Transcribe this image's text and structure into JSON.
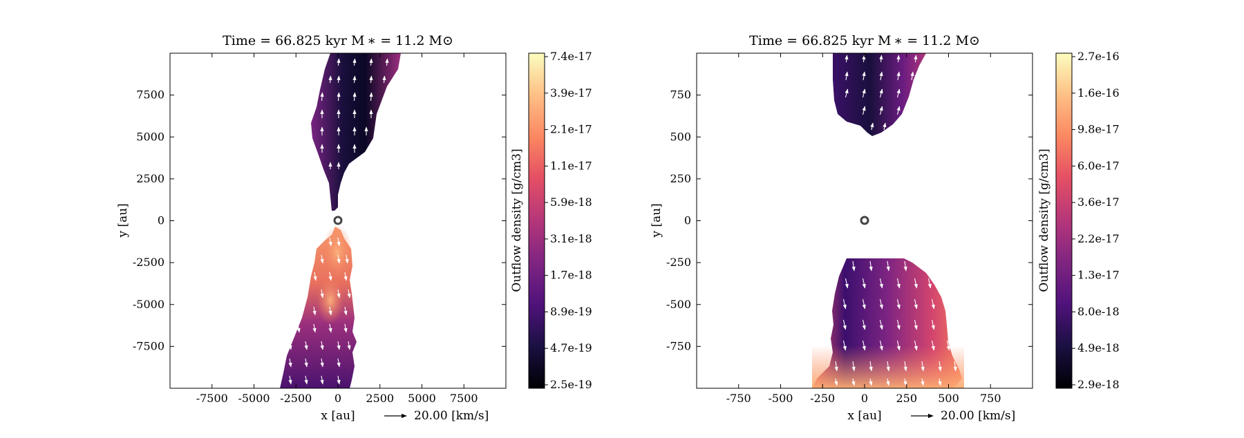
{
  "chart_data": [
    {
      "type": "heatmap",
      "title": "Time = 66.825 kyr    M ∗ = 11.2 M⊙",
      "xlabel": "x [au]",
      "ylabel": "y [au]",
      "xlim": [
        -10000,
        10000
      ],
      "ylim": [
        -10000,
        10000
      ],
      "xticks": [
        -7500,
        -5000,
        -2500,
        0,
        2500,
        5000,
        7500
      ],
      "yticks": [
        7500,
        5000,
        2500,
        0,
        -2500,
        -5000,
        -7500
      ],
      "xtick_labels": [
        "-7500",
        "-5000",
        "-2500",
        "0",
        "2500",
        "5000",
        "7500"
      ],
      "ytick_labels": [
        "7500",
        "5000",
        "2500",
        "0",
        "-2500",
        "-5000",
        "-7500"
      ],
      "vector_key": "20.00 [km/s]",
      "colorbar": {
        "label": "Outflow density [g/cm3]",
        "scale": "log",
        "colormap": "magma",
        "tick_labels": [
          "7.4e-17",
          "3.9e-17",
          "2.1e-17",
          "1.1e-17",
          "5.9e-18",
          "3.1e-18",
          "1.7e-18",
          "8.9e-19",
          "4.7e-19",
          "2.5e-19"
        ]
      },
      "star_position": [
        0,
        0
      ],
      "regions": [
        {
          "name": "north lobe",
          "y_range": [
            600,
            10000
          ],
          "density_trend": "low (dark) near center, higher at edges"
        },
        {
          "name": "south lobe",
          "y_range": [
            -10000,
            -100
          ],
          "density_trend": "highest (orange) near star, decreasing outward"
        }
      ]
    },
    {
      "type": "heatmap",
      "title": "Time = 66.825 kyr    M ∗ = 11.2 M⊙",
      "xlabel": "x [au]",
      "ylabel": "y [au]",
      "xlim": [
        -1000,
        1000
      ],
      "ylim": [
        -1000,
        1000
      ],
      "xticks": [
        -750,
        -500,
        -250,
        0,
        250,
        500,
        750
      ],
      "yticks": [
        750,
        500,
        250,
        0,
        -250,
        -500,
        -750
      ],
      "xtick_labels": [
        "-750",
        "-500",
        "-250",
        "0",
        "250",
        "500",
        "750"
      ],
      "ytick_labels": [
        "750",
        "500",
        "250",
        "0",
        "-250",
        "-500",
        "-750"
      ],
      "vector_key": "20.00 [km/s]",
      "colorbar": {
        "label": "Outflow density [g/cm3]",
        "scale": "log",
        "colormap": "magma",
        "tick_labels": [
          "2.7e-16",
          "1.6e-16",
          "9.8e-17",
          "6.0e-17",
          "3.6e-17",
          "2.2e-17",
          "1.3e-17",
          "8.0e-18",
          "4.9e-18",
          "2.9e-18"
        ]
      },
      "star_position": [
        0,
        0
      ],
      "regions": [
        {
          "name": "north lobe",
          "y_range": [
            500,
            1000
          ],
          "density_trend": "dark purple to purple"
        },
        {
          "name": "south lobe",
          "y_range": [
            -1000,
            -230
          ],
          "density_trend": "dark core, orange-yellow at base and edges"
        }
      ]
    }
  ]
}
